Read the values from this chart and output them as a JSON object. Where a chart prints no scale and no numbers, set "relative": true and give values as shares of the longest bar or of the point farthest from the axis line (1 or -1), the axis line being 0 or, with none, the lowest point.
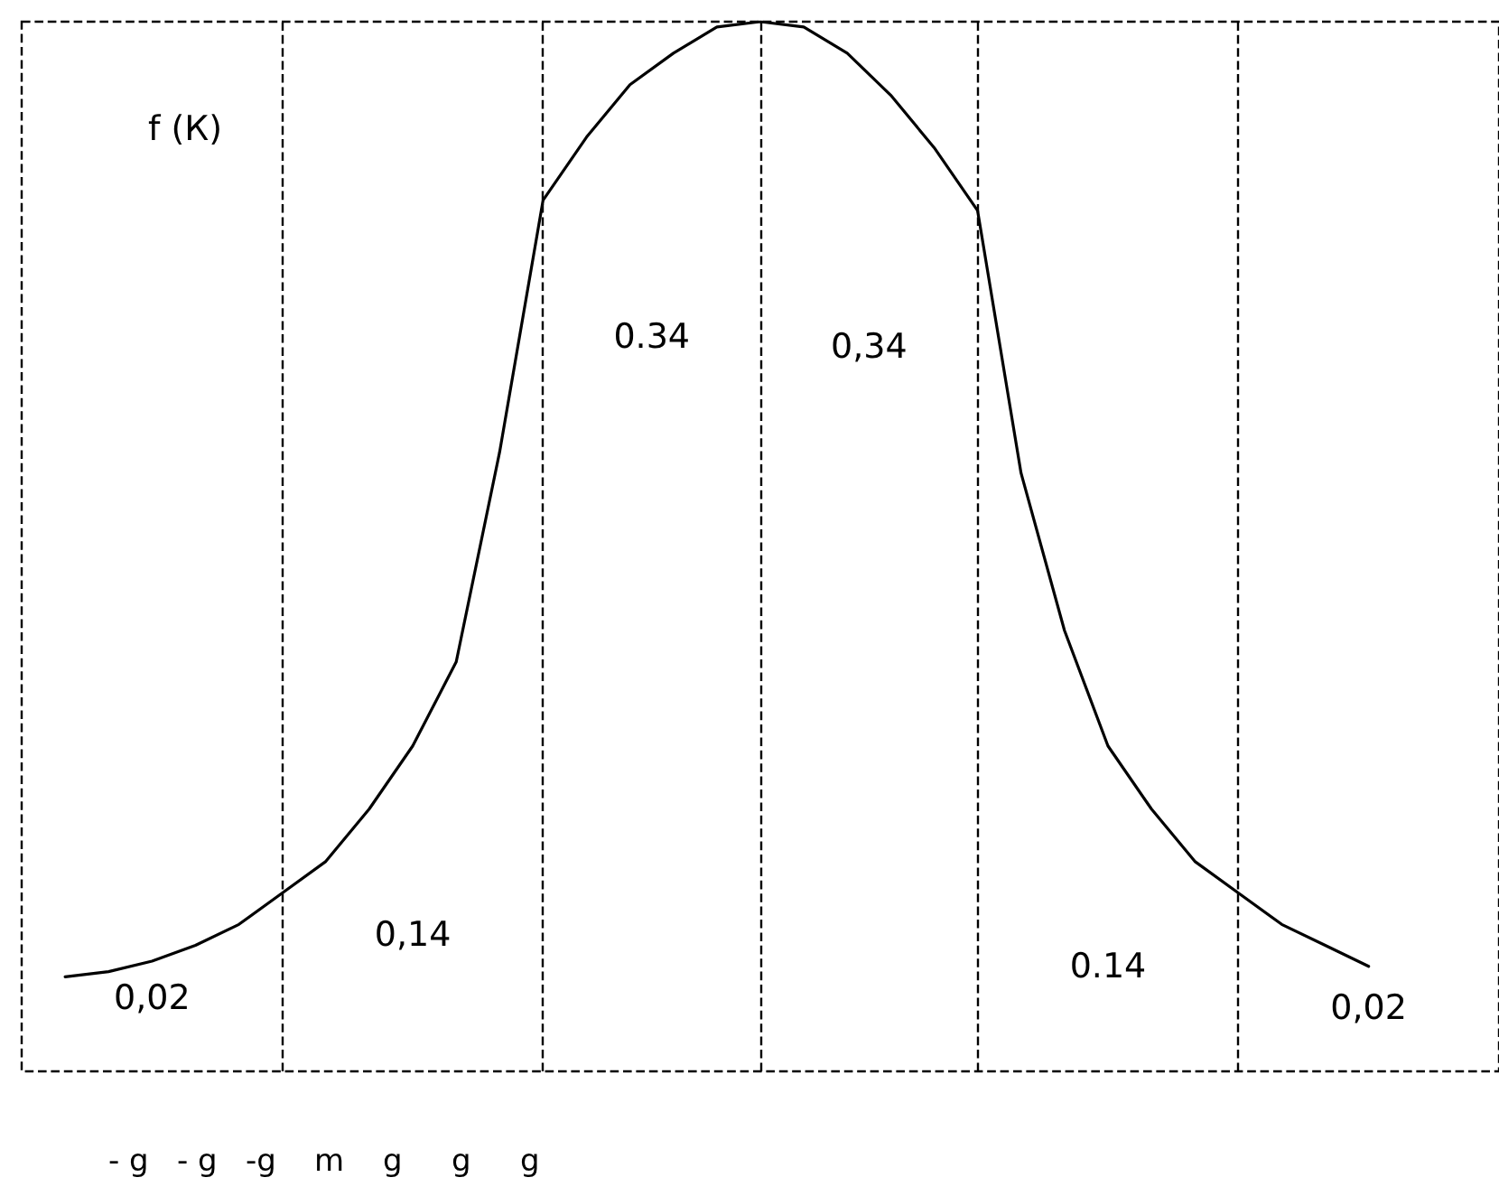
{
  "chart_data": {
    "type": "line",
    "relative": true,
    "ylabel": "f (К)",
    "tick_labels": false,
    "grid": "x",
    "marker": "none",
    "line_style": "solid",
    "categories": [
      null,
      null,
      null,
      null,
      null,
      null,
      null,
      null,
      null,
      null,
      null,
      null,
      null,
      null,
      null,
      null,
      null,
      null,
      null,
      null,
      null,
      null,
      null,
      null,
      null,
      null,
      null,
      null,
      null,
      null,
      null,
      null,
      null,
      null,
      null
    ],
    "series": [
      {
        "color": "#000000",
        "values": [
          null,
          0.09,
          0.095,
          0.105,
          0.12,
          0.14,
          0.17,
          0.2,
          0.25,
          0.31,
          0.39,
          0.59,
          0.83,
          0.89,
          0.94,
          0.97,
          0.995,
          1,
          0.995,
          0.97,
          0.93,
          0.88,
          0.82,
          0.57,
          0.42,
          0.31,
          0.25,
          0.2,
          0.17,
          0.14,
          0.12,
          0.1,
          null,
          null,
          null
        ]
      }
    ],
    "annotations": [
      "0,02",
      "0,14",
      "0.34",
      "0,34",
      "0.14",
      "0,02",
      "- g",
      "- g",
      "-g",
      "m",
      "g",
      "g",
      "g"
    ]
  }
}
